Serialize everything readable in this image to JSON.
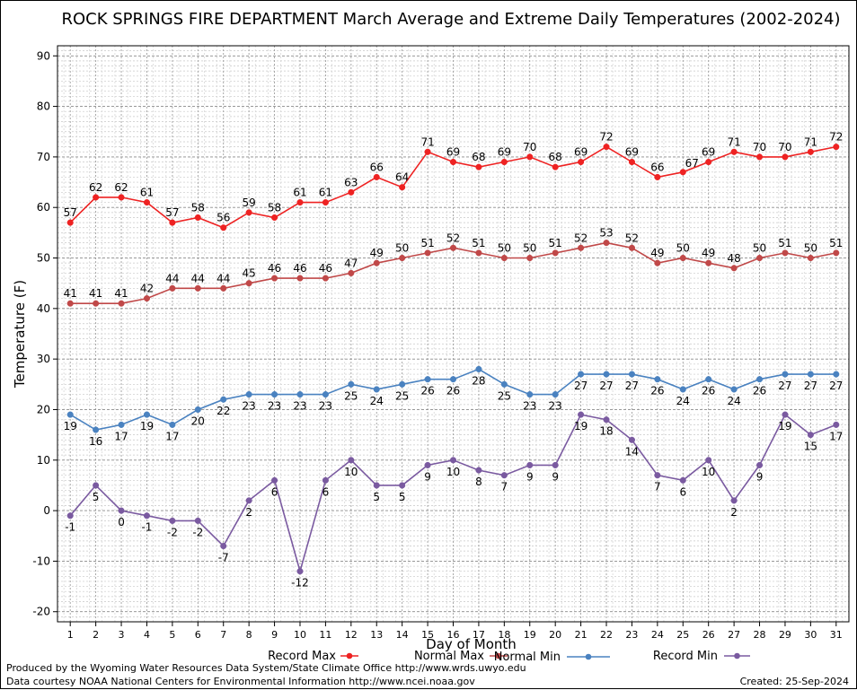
{
  "chart_data": {
    "type": "line",
    "title": "ROCK SPRINGS FIRE DEPARTMENT March Average and Extreme Daily Temperatures (2002-2024)",
    "xlabel": "Day of Month",
    "ylabel": "Temperature (F)",
    "ylim": [
      -22,
      92
    ],
    "y_ticks": [
      -20,
      -10,
      0,
      10,
      20,
      30,
      40,
      50,
      60,
      70,
      80,
      90
    ],
    "grid": true,
    "legend_position": "bottom",
    "x": [
      1,
      2,
      3,
      4,
      5,
      6,
      7,
      8,
      9,
      10,
      11,
      12,
      13,
      14,
      15,
      16,
      17,
      18,
      19,
      20,
      21,
      22,
      23,
      24,
      25,
      26,
      27,
      28,
      29,
      30,
      31
    ],
    "series": [
      {
        "name": "Record Max",
        "color": "#ee2222",
        "label_position": "above",
        "values": [
          57,
          62,
          62,
          61,
          57,
          58,
          56,
          59,
          58,
          61,
          61,
          63,
          66,
          64,
          71,
          69,
          68,
          69,
          70,
          68,
          69,
          72,
          69,
          66,
          67,
          69,
          71,
          70,
          70,
          71,
          72
        ],
        "labels": [
          "57",
          "62",
          "62",
          "61",
          "57",
          "58",
          "56",
          "59",
          "58",
          "61",
          "61",
          "63",
          "66",
          "64",
          "71",
          "69",
          "68",
          "69",
          "70",
          "68",
          "69",
          "72",
          "69",
          "66",
          "",
          "69",
          "71",
          "70",
          "70",
          "71",
          "72"
        ]
      },
      {
        "name": "Normal Max",
        "color": "#c04848",
        "label_position": "above",
        "values": [
          41,
          41,
          41,
          42,
          44,
          44,
          44,
          45,
          46,
          46,
          46,
          47,
          49,
          50,
          51,
          52,
          51,
          50,
          50,
          51,
          52,
          53,
          52,
          49,
          50,
          49,
          48,
          50,
          51,
          50,
          51
        ],
        "labels": [
          "41",
          "41",
          "41",
          "42",
          "44",
          "44",
          "44",
          "45",
          "46",
          "46",
          "46",
          "47",
          "49",
          "50",
          "51",
          "52",
          "51",
          "50",
          "50",
          "51",
          "52",
          "53",
          "52",
          "49",
          "50",
          "49",
          "48",
          "50",
          "51",
          "50",
          "51"
        ]
      },
      {
        "name": "Normal Min",
        "color": "#4a82c0",
        "label_position": "below",
        "values": [
          19,
          16,
          17,
          19,
          17,
          20,
          22,
          23,
          23,
          23,
          23,
          25,
          24,
          25,
          26,
          26,
          28,
          25,
          23,
          23,
          27,
          27,
          27,
          26,
          24,
          26,
          24,
          26,
          27,
          27,
          27
        ],
        "labels": [
          "19",
          "16",
          "17",
          "19",
          "17",
          "20",
          "22",
          "23",
          "23",
          "23",
          "23",
          "25",
          "24",
          "25",
          "26",
          "26",
          "28",
          "25",
          "23",
          "23",
          "27",
          "27",
          "27",
          "26",
          "24",
          "26",
          "24",
          "26",
          "27",
          "27",
          "27"
        ]
      },
      {
        "name": "Record Min",
        "color": "#7a5aa0",
        "label_position": "below",
        "values": [
          -1,
          5,
          0,
          -1,
          -2,
          -2,
          -7,
          2,
          6,
          -12,
          6,
          10,
          5,
          5,
          9,
          10,
          8,
          7,
          9,
          9,
          19,
          18,
          14,
          7,
          6,
          10,
          2,
          9,
          19,
          15,
          17
        ],
        "labels": [
          "-1",
          "5",
          "0",
          "-1",
          "-2",
          "-2",
          "-7",
          "2",
          "6",
          "-12",
          "6",
          "10",
          "5",
          "5",
          "9",
          "10",
          "8",
          "7",
          "9",
          "9",
          "19",
          "18",
          "14",
          "7",
          "6",
          "10",
          "2",
          "9",
          "19",
          "15",
          "17"
        ]
      }
    ],
    "extra_labels": [
      {
        "text": "67",
        "x": 25,
        "y": 67
      }
    ]
  },
  "footer": {
    "produced_by": "Produced by the Wyoming Water Resources Data System/State Climate Office http://www.wrds.uwyo.edu",
    "data_courtesy": "Data courtesy NOAA National Centers for Environmental Information http://www.ncei.noaa.gov",
    "created": "Created:  25-Sep-2024"
  }
}
